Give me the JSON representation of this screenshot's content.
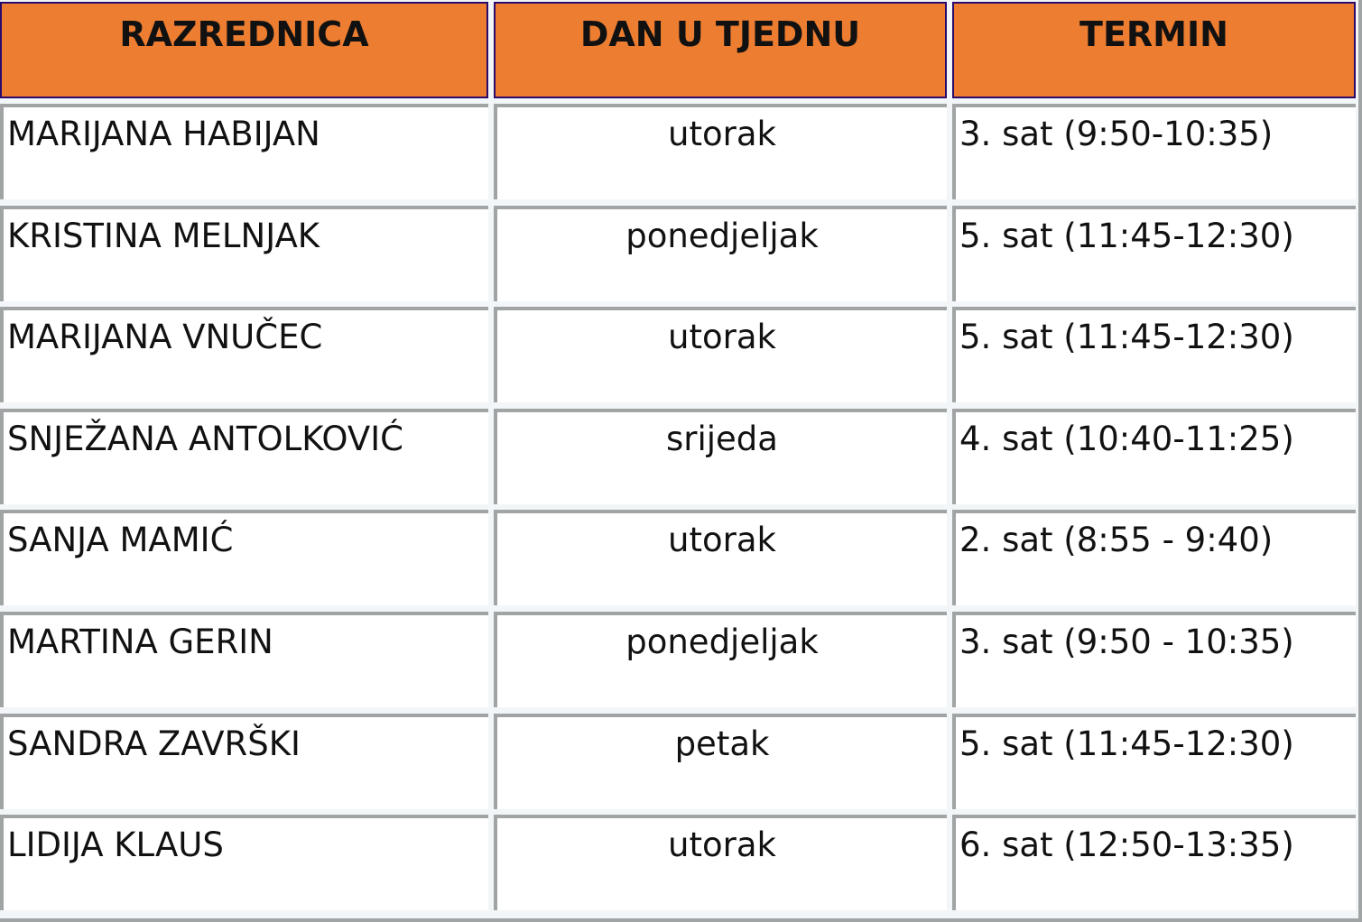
{
  "headers": [
    "RAZREDNICA",
    "DAN U TJEDNU",
    "TERMIN"
  ],
  "rows": [
    [
      "MARIJANA HABIJAN",
      "utorak",
      "3. sat (9:50-10:35)"
    ],
    [
      "KRISTINA MELNJAK",
      "ponedjeljak",
      "5. sat (11:45-12:30)"
    ],
    [
      "MARIJANA VNUČEC",
      "utorak",
      "5. sat (11:45-12:30)"
    ],
    [
      "SNJEŽANA ANTOLKOVIĆ",
      "srijeda",
      "4. sat (10:40-11:25)"
    ],
    [
      "SANJA MAMIĆ",
      "utorak",
      "2. sat (8:55 - 9:40)"
    ],
    [
      "MARTINA GERIN",
      "ponedjeljak",
      "3. sat (9:50 - 10:35)"
    ],
    [
      "SANDRA ZAVRŠKI",
      "petak",
      "5. sat (11:45-12:30)"
    ],
    [
      "LIDIJA KLAUS",
      "utorak",
      "6. sat (12:50-13:35)"
    ]
  ],
  "colors": {
    "header_bg": "#ed7d31",
    "header_border": "#2a0a6a",
    "cell_border": "#a0a4a4"
  }
}
